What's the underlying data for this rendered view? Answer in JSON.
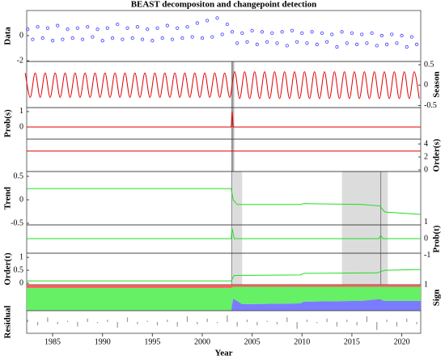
{
  "chart_data": [
    {
      "type": "scatter",
      "title": "BEAST decompositon and changepoint detection",
      "ylabel": "Data",
      "axis_side": "left",
      "color": "#3a3aff",
      "xlim": [
        1982.4,
        2021.9
      ],
      "ylim": [
        -2.06,
        2.0
      ],
      "yticks": [
        -2,
        0
      ],
      "x": [
        1982.5,
        1983,
        1983.5,
        1984,
        1984.5,
        1985,
        1985.5,
        1986,
        1986.5,
        1987,
        1987.5,
        1988,
        1988.5,
        1989,
        1989.5,
        1990,
        1990.5,
        1991,
        1991.5,
        1992,
        1992.5,
        1993,
        1993.5,
        1994,
        1994.5,
        1995,
        1995.5,
        1996,
        1996.5,
        1997,
        1997.5,
        1998,
        1998.5,
        1999,
        1999.5,
        2000,
        2000.5,
        2001,
        2001.5,
        2002,
        2002.5,
        2003,
        2003.5,
        2004,
        2004.5,
        2005,
        2005.5,
        2006,
        2006.5,
        2007,
        2007.5,
        2008,
        2008.5,
        2009,
        2009.5,
        2010,
        2010.5,
        2011,
        2011.5,
        2012,
        2012.5,
        2013,
        2013.5,
        2014,
        2014.5,
        2015,
        2015.5,
        2016,
        2016.5,
        2017,
        2017.5,
        2018,
        2018.5,
        2019,
        2019.5,
        2020,
        2020.5,
        2021,
        2021.5
      ],
      "values": [
        0.5,
        -0.3,
        0.7,
        -0.2,
        0.6,
        -0.4,
        0.8,
        -0.3,
        0.5,
        -0.2,
        0.6,
        -0.3,
        0.7,
        -0.1,
        0.5,
        -0.4,
        0.6,
        -0.2,
        0.9,
        -0.3,
        0.6,
        -0.2,
        0.7,
        -0.3,
        0.5,
        -0.4,
        0.6,
        -0.2,
        0.8,
        -0.3,
        0.6,
        -0.2,
        0.7,
        -0.1,
        1.0,
        -0.2,
        1.2,
        -0.1,
        1.4,
        0.1,
        0.9,
        0.3,
        -0.6,
        0.2,
        -0.5,
        0.4,
        -0.7,
        0.3,
        -0.5,
        0.2,
        -0.6,
        0.3,
        -0.8,
        0.4,
        -0.5,
        0.2,
        -0.6,
        0.3,
        -0.7,
        0.2,
        -0.5,
        0.1,
        -0.9,
        0.3,
        -0.6,
        0.2,
        -0.7,
        0.1,
        -0.6,
        0.2,
        -0.8,
        0.0,
        -0.7,
        0.1,
        -0.6,
        0.0,
        -0.9,
        -0.1,
        -0.7
      ]
    },
    {
      "type": "line",
      "ylabel": "Season",
      "axis_side": "right",
      "color": "#e00000",
      "smooth": true,
      "xlim": [
        1982.4,
        2021.9
      ],
      "ylim": [
        -0.55,
        0.58
      ],
      "yticks": [
        -0.5,
        0,
        0.5
      ],
      "bands": [
        [
          2002.9,
          2003.2
        ]
      ],
      "changepoints": [
        2003.0
      ],
      "x": [
        1982.25,
        1982.75,
        1983.25,
        1983.75,
        1984.25,
        1984.75,
        1985.25,
        1985.75,
        1986.25,
        1986.75,
        1987.25,
        1987.75,
        1988.25,
        1988.75,
        1989.25,
        1989.75,
        1990.25,
        1990.75,
        1991.25,
        1991.75,
        1992.25,
        1992.75,
        1993.25,
        1993.75,
        1994.25,
        1994.75,
        1995.25,
        1995.75,
        1996.25,
        1996.75,
        1997.25,
        1997.75,
        1998.25,
        1998.75,
        1999.25,
        1999.75,
        2000.25,
        2000.75,
        2001.25,
        2001.75,
        2002.25,
        2002.75,
        2003.25,
        2003.75,
        2004.25,
        2004.75,
        2005.25,
        2005.75,
        2006.25,
        2006.75,
        2007.25,
        2007.75,
        2008.25,
        2008.75,
        2009.25,
        2009.75,
        2010.25,
        2010.75,
        2011.25,
        2011.75,
        2012.25,
        2012.75,
        2013.25,
        2013.75,
        2014.25,
        2014.75,
        2015.25,
        2015.75,
        2016.25,
        2016.75,
        2017.25,
        2017.75,
        2018.25,
        2018.75,
        2019.25,
        2019.75,
        2020.25,
        2020.75,
        2021.25,
        2021.75
      ],
      "values": [
        0.3,
        -0.3,
        0.3,
        -0.3,
        0.3,
        -0.3,
        0.3,
        -0.3,
        0.3,
        -0.3,
        0.3,
        -0.3,
        0.3,
        -0.3,
        0.3,
        -0.3,
        0.3,
        -0.3,
        0.3,
        -0.3,
        0.3,
        -0.3,
        0.3,
        -0.3,
        0.3,
        -0.3,
        0.3,
        -0.3,
        0.3,
        -0.3,
        0.3,
        -0.3,
        0.3,
        -0.3,
        0.3,
        -0.3,
        0.3,
        -0.3,
        0.3,
        -0.3,
        0.3,
        -0.3,
        0.33,
        -0.33,
        0.33,
        -0.33,
        0.33,
        -0.33,
        0.33,
        -0.33,
        0.33,
        -0.33,
        0.33,
        -0.33,
        0.33,
        -0.33,
        0.33,
        -0.33,
        0.33,
        -0.33,
        0.33,
        -0.33,
        0.33,
        -0.33,
        0.33,
        -0.33,
        0.33,
        -0.33,
        0.33,
        -0.33,
        0.33,
        -0.33,
        0.33,
        -0.33,
        0.33,
        -0.33,
        0.33,
        -0.33,
        0.33,
        -0.33
      ]
    },
    {
      "type": "line",
      "ylabel": "Prob(s)",
      "axis_side": "left",
      "color": "#e00000",
      "xlim": [
        1982.4,
        2021.9
      ],
      "ylim": [
        -0.79,
        1.26
      ],
      "yticks": [
        0,
        1
      ],
      "x": [
        1982.4,
        2002.9,
        2003.0,
        2003.1,
        2021.9
      ],
      "values": [
        0,
        0,
        1,
        0,
        0
      ]
    },
    {
      "type": "line",
      "ylabel": "Order(s)",
      "axis_side": "right",
      "color": "#e00000",
      "xlim": [
        1982.4,
        2021.9
      ],
      "ylim": [
        -0.25,
        4.75
      ],
      "yticks": [
        0,
        2,
        4
      ],
      "x": [
        1982.4,
        2021.9
      ],
      "values": [
        2.9,
        2.9
      ]
    },
    {
      "type": "line",
      "ylabel": "Trend",
      "axis_side": "left",
      "color": "#22dd22",
      "xlim": [
        1982.4,
        2021.9
      ],
      "ylim": [
        -0.534,
        0.603
      ],
      "yticks": [
        -0.5,
        0,
        0.5
      ],
      "bands": [
        [
          2003.0,
          2004.0
        ],
        [
          2014.0,
          2018.6
        ]
      ],
      "changepoints": [
        2017.9
      ],
      "x": [
        1982.4,
        2002.9,
        2003.1,
        2003.5,
        2009.8,
        2010.2,
        2016.0,
        2017.8,
        2018.3,
        2021.9
      ],
      "values": [
        0.24,
        0.24,
        0.0,
        -0.1,
        -0.1,
        -0.08,
        -0.1,
        -0.13,
        -0.26,
        -0.31
      ]
    },
    {
      "type": "line",
      "ylabel": "Prob(t)",
      "axis_side": "right",
      "color": "#22dd22",
      "xlim": [
        1982.4,
        2021.9
      ],
      "ylim": [
        -0.88,
        0.83
      ],
      "yticks": [
        -1,
        0,
        1
      ],
      "x": [
        1982.4,
        2002.9,
        2003.0,
        2003.2,
        2017.7,
        2017.9,
        2018.1,
        2021.9
      ],
      "values": [
        0,
        0,
        0.6,
        0,
        0,
        0.2,
        0,
        0
      ]
    },
    {
      "type": "line",
      "ylabel": "Order(t)",
      "axis_side": "left",
      "color": "#22dd22",
      "xlim": [
        1982.4,
        2021.9
      ],
      "ylim": [
        -0.06,
        1.16
      ],
      "yticks": [
        0,
        0.5,
        1
      ],
      "x": [
        1982.4,
        2002.9,
        2003.2,
        2009.8,
        2010.2,
        2017.5,
        2018.3,
        2021.9
      ],
      "values": [
        0.09,
        0.09,
        0.3,
        0.32,
        0.38,
        0.4,
        0.5,
        0.53
      ]
    },
    {
      "type": "area",
      "ylabel": "Sign",
      "axis_side": "right",
      "xlim": [
        1982.4,
        2021.9
      ],
      "ylim": [
        0,
        1
      ],
      "yticks": [
        1
      ],
      "x": [
        1982.4,
        2002.9,
        2003.1,
        2004,
        2009.8,
        2010.2,
        2016,
        2017.8,
        2018.2,
        2021.9
      ],
      "series": [
        {
          "color": "#7b7bff",
          "values": [
            0,
            0,
            0.47,
            0.25,
            0.28,
            0.35,
            0.38,
            0.45,
            0.38,
            0.38
          ]
        },
        {
          "color": "#66f066",
          "values": [
            0.88,
            0.88,
            0.45,
            0.67,
            0.64,
            0.57,
            0.54,
            0.47,
            0.54,
            0.54
          ]
        },
        {
          "color": "#ff5a5a",
          "values": [
            0.12,
            0.12,
            0.08,
            0.08,
            0.08,
            0.08,
            0.08,
            0.08,
            0.08,
            0.08
          ]
        }
      ]
    },
    {
      "type": "bar",
      "ylabel": "Residual",
      "axis_side": "left",
      "color": "#999999",
      "xlim": [
        1982.4,
        2021.9
      ],
      "ylim": [
        -0.5,
        0.5
      ],
      "xlabel": "Year",
      "xticks": [
        1985,
        1990,
        1995,
        2000,
        2005,
        2010,
        2015,
        2020
      ],
      "x": [
        1982.5,
        1983.5,
        1984.5,
        1985.5,
        1986.5,
        1987.5,
        1988.5,
        1989.5,
        1990.5,
        1991.5,
        1992.5,
        1993.5,
        1994.5,
        1995.5,
        1996.5,
        1997.5,
        1998.5,
        1999.5,
        2000.5,
        2001.5,
        2002.5,
        2003.5,
        2004.5,
        2005.5,
        2006.5,
        2007.5,
        2008.5,
        2009.5,
        2010.5,
        2011.5,
        2012.5,
        2013.5,
        2014.5,
        2015.5,
        2016.5,
        2017.5,
        2018.5,
        2019.5,
        2020.5,
        2021.5
      ],
      "values": [
        0.1,
        -0.15,
        0.2,
        -0.1,
        0.05,
        -0.2,
        0.15,
        -0.05,
        0.1,
        -0.25,
        0.2,
        -0.1,
        0.05,
        -0.15,
        0.1,
        -0.2,
        0.25,
        -0.1,
        0.15,
        -0.05,
        0.3,
        -0.2,
        0.1,
        -0.15,
        0.05,
        -0.1,
        0.2,
        -0.3,
        0.1,
        -0.05,
        0.15,
        -0.2,
        0.1,
        -0.15,
        0.25,
        -0.35,
        0.1,
        -0.2,
        0.15,
        -0.1
      ]
    }
  ]
}
